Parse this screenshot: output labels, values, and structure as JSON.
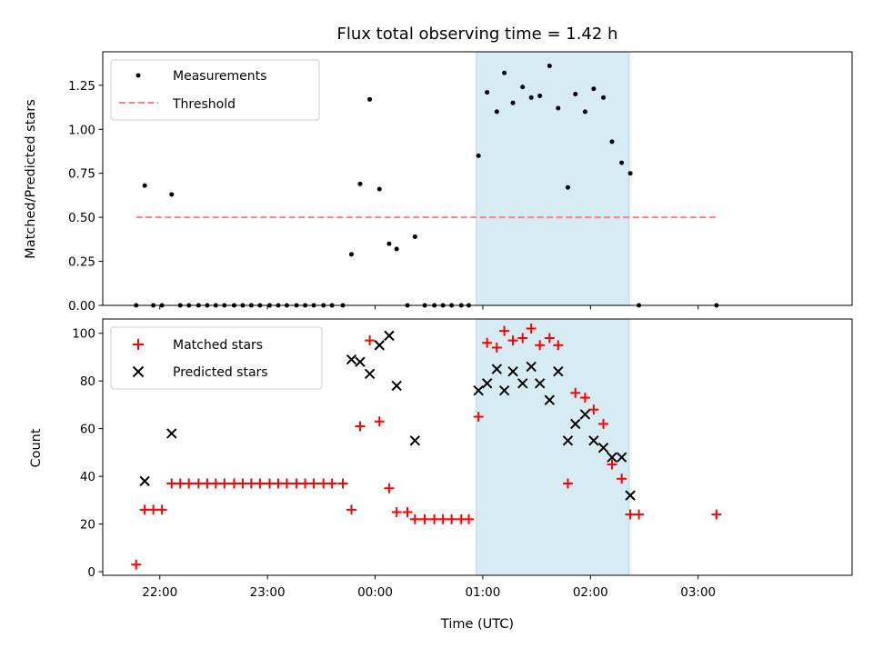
{
  "chart_data": {
    "title": "Flux total observing time = 1.42 h",
    "xlabel": "Time (UTC)",
    "x_ticks": [
      {
        "t": 22.0,
        "label": "22:00"
      },
      {
        "t": 23.0,
        "label": "23:00"
      },
      {
        "t": 24.0,
        "label": "00:00"
      },
      {
        "t": 25.0,
        "label": "01:00"
      },
      {
        "t": 26.0,
        "label": "02:00"
      },
      {
        "t": 27.0,
        "label": "03:00"
      }
    ],
    "x_range": [
      21.47,
      28.43
    ],
    "x_scale_note": "x values are hours UTC; values above 24 are the following day (e.g. 25.0 = 01:00)",
    "highlight_span": [
      24.94,
      26.36
    ],
    "charts": [
      {
        "type": "scatter",
        "ylabel": "Matched/Predicted stars",
        "ylim": [
          0,
          1.44
        ],
        "y_ticks": [
          "0.00",
          "0.25",
          "0.50",
          "0.75",
          "1.00",
          "1.25"
        ],
        "y_tick_values": [
          0,
          0.25,
          0.5,
          0.75,
          1.0,
          1.25
        ],
        "legend": {
          "position": "upper-left",
          "entries": [
            "Measurements",
            "Threshold"
          ]
        },
        "threshold": {
          "name": "Threshold",
          "value": 0.5,
          "x_start": 21.78,
          "x_end": 27.17,
          "color": "#ff7f7f"
        },
        "series": [
          {
            "name": "Measurements",
            "color": "#000000",
            "points": [
              [
                21.78,
                0.0
              ],
              [
                21.86,
                0.68
              ],
              [
                21.94,
                0.0
              ],
              [
                22.02,
                0.0
              ],
              [
                22.11,
                0.63
              ],
              [
                22.19,
                0.0
              ],
              [
                22.27,
                0.0
              ],
              [
                22.36,
                0.0
              ],
              [
                22.44,
                0.0
              ],
              [
                22.52,
                0.0
              ],
              [
                22.6,
                0.0
              ],
              [
                22.69,
                0.0
              ],
              [
                22.77,
                0.0
              ],
              [
                22.85,
                0.0
              ],
              [
                22.93,
                0.0
              ],
              [
                23.02,
                0.0
              ],
              [
                23.1,
                0.0
              ],
              [
                23.18,
                0.0
              ],
              [
                23.27,
                0.0
              ],
              [
                23.35,
                0.0
              ],
              [
                23.43,
                0.0
              ],
              [
                23.52,
                0.0
              ],
              [
                23.6,
                0.0
              ],
              [
                23.7,
                0.0
              ],
              [
                23.78,
                0.29
              ],
              [
                23.86,
                0.69
              ],
              [
                23.95,
                1.17
              ],
              [
                24.04,
                0.66
              ],
              [
                24.13,
                0.35
              ],
              [
                24.2,
                0.32
              ],
              [
                24.3,
                0.0
              ],
              [
                24.37,
                0.39
              ],
              [
                24.46,
                0.0
              ],
              [
                24.55,
                0.0
              ],
              [
                24.63,
                0.0
              ],
              [
                24.71,
                0.0
              ],
              [
                24.8,
                0.0
              ],
              [
                24.87,
                0.0
              ],
              [
                24.96,
                0.85
              ],
              [
                25.04,
                1.21
              ],
              [
                25.13,
                1.1
              ],
              [
                25.2,
                1.32
              ],
              [
                25.28,
                1.15
              ],
              [
                25.37,
                1.24
              ],
              [
                25.45,
                1.18
              ],
              [
                25.53,
                1.19
              ],
              [
                25.62,
                1.36
              ],
              [
                25.7,
                1.12
              ],
              [
                25.79,
                0.67
              ],
              [
                25.86,
                1.2
              ],
              [
                25.95,
                1.1
              ],
              [
                26.03,
                1.23
              ],
              [
                26.12,
                1.18
              ],
              [
                26.2,
                0.93
              ],
              [
                26.29,
                0.81
              ],
              [
                26.37,
                0.75
              ],
              [
                26.45,
                0.0
              ],
              [
                27.17,
                0.0
              ]
            ]
          }
        ]
      },
      {
        "type": "scatter",
        "ylabel": "Count",
        "ylim": [
          -1.5,
          106
        ],
        "y_ticks": [
          "0",
          "20",
          "40",
          "60",
          "80",
          "100"
        ],
        "y_tick_values": [
          0,
          20,
          40,
          60,
          80,
          100
        ],
        "legend": {
          "position": "upper-left",
          "entries": [
            "Matched stars",
            "Predicted stars"
          ]
        },
        "series": [
          {
            "name": "Matched stars",
            "marker": "plus",
            "color": "#ff0000",
            "points": [
              [
                21.78,
                3
              ],
              [
                21.86,
                26
              ],
              [
                21.94,
                26
              ],
              [
                22.02,
                26
              ],
              [
                22.11,
                37
              ],
              [
                22.19,
                37
              ],
              [
                22.27,
                37
              ],
              [
                22.36,
                37
              ],
              [
                22.44,
                37
              ],
              [
                22.52,
                37
              ],
              [
                22.6,
                37
              ],
              [
                22.69,
                37
              ],
              [
                22.77,
                37
              ],
              [
                22.85,
                37
              ],
              [
                22.93,
                37
              ],
              [
                23.02,
                37
              ],
              [
                23.1,
                37
              ],
              [
                23.18,
                37
              ],
              [
                23.27,
                37
              ],
              [
                23.35,
                37
              ],
              [
                23.43,
                37
              ],
              [
                23.52,
                37
              ],
              [
                23.6,
                37
              ],
              [
                23.7,
                37
              ],
              [
                23.78,
                26
              ],
              [
                23.86,
                61
              ],
              [
                23.95,
                97
              ],
              [
                24.04,
                63
              ],
              [
                24.13,
                35
              ],
              [
                24.2,
                25
              ],
              [
                24.3,
                25
              ],
              [
                24.37,
                22
              ],
              [
                24.46,
                22
              ],
              [
                24.55,
                22
              ],
              [
                24.63,
                22
              ],
              [
                24.71,
                22
              ],
              [
                24.8,
                22
              ],
              [
                24.87,
                22
              ],
              [
                24.96,
                65
              ],
              [
                25.04,
                96
              ],
              [
                25.13,
                94
              ],
              [
                25.2,
                101
              ],
              [
                25.28,
                97
              ],
              [
                25.37,
                98
              ],
              [
                25.45,
                102
              ],
              [
                25.53,
                95
              ],
              [
                25.62,
                98
              ],
              [
                25.7,
                95
              ],
              [
                25.79,
                37
              ],
              [
                25.86,
                75
              ],
              [
                25.95,
                73
              ],
              [
                26.03,
                68
              ],
              [
                26.12,
                62
              ],
              [
                26.2,
                45
              ],
              [
                26.29,
                39
              ],
              [
                26.37,
                24
              ],
              [
                26.45,
                24
              ],
              [
                27.17,
                24
              ]
            ]
          },
          {
            "name": "Predicted stars",
            "marker": "x",
            "color": "#000000",
            "points": [
              [
                21.86,
                38
              ],
              [
                22.11,
                58
              ],
              [
                23.78,
                89
              ],
              [
                23.86,
                88
              ],
              [
                23.95,
                83
              ],
              [
                24.04,
                95
              ],
              [
                24.13,
                99
              ],
              [
                24.2,
                78
              ],
              [
                24.37,
                55
              ],
              [
                24.96,
                76
              ],
              [
                25.04,
                79
              ],
              [
                25.13,
                85
              ],
              [
                25.2,
                76
              ],
              [
                25.28,
                84
              ],
              [
                25.37,
                79
              ],
              [
                25.45,
                86
              ],
              [
                25.53,
                79
              ],
              [
                25.62,
                72
              ],
              [
                25.7,
                84
              ],
              [
                25.79,
                55
              ],
              [
                25.86,
                62
              ],
              [
                25.95,
                66
              ],
              [
                26.03,
                55
              ],
              [
                26.12,
                52
              ],
              [
                26.2,
                48
              ],
              [
                26.29,
                48
              ],
              [
                26.37,
                32
              ]
            ]
          }
        ]
      }
    ]
  }
}
